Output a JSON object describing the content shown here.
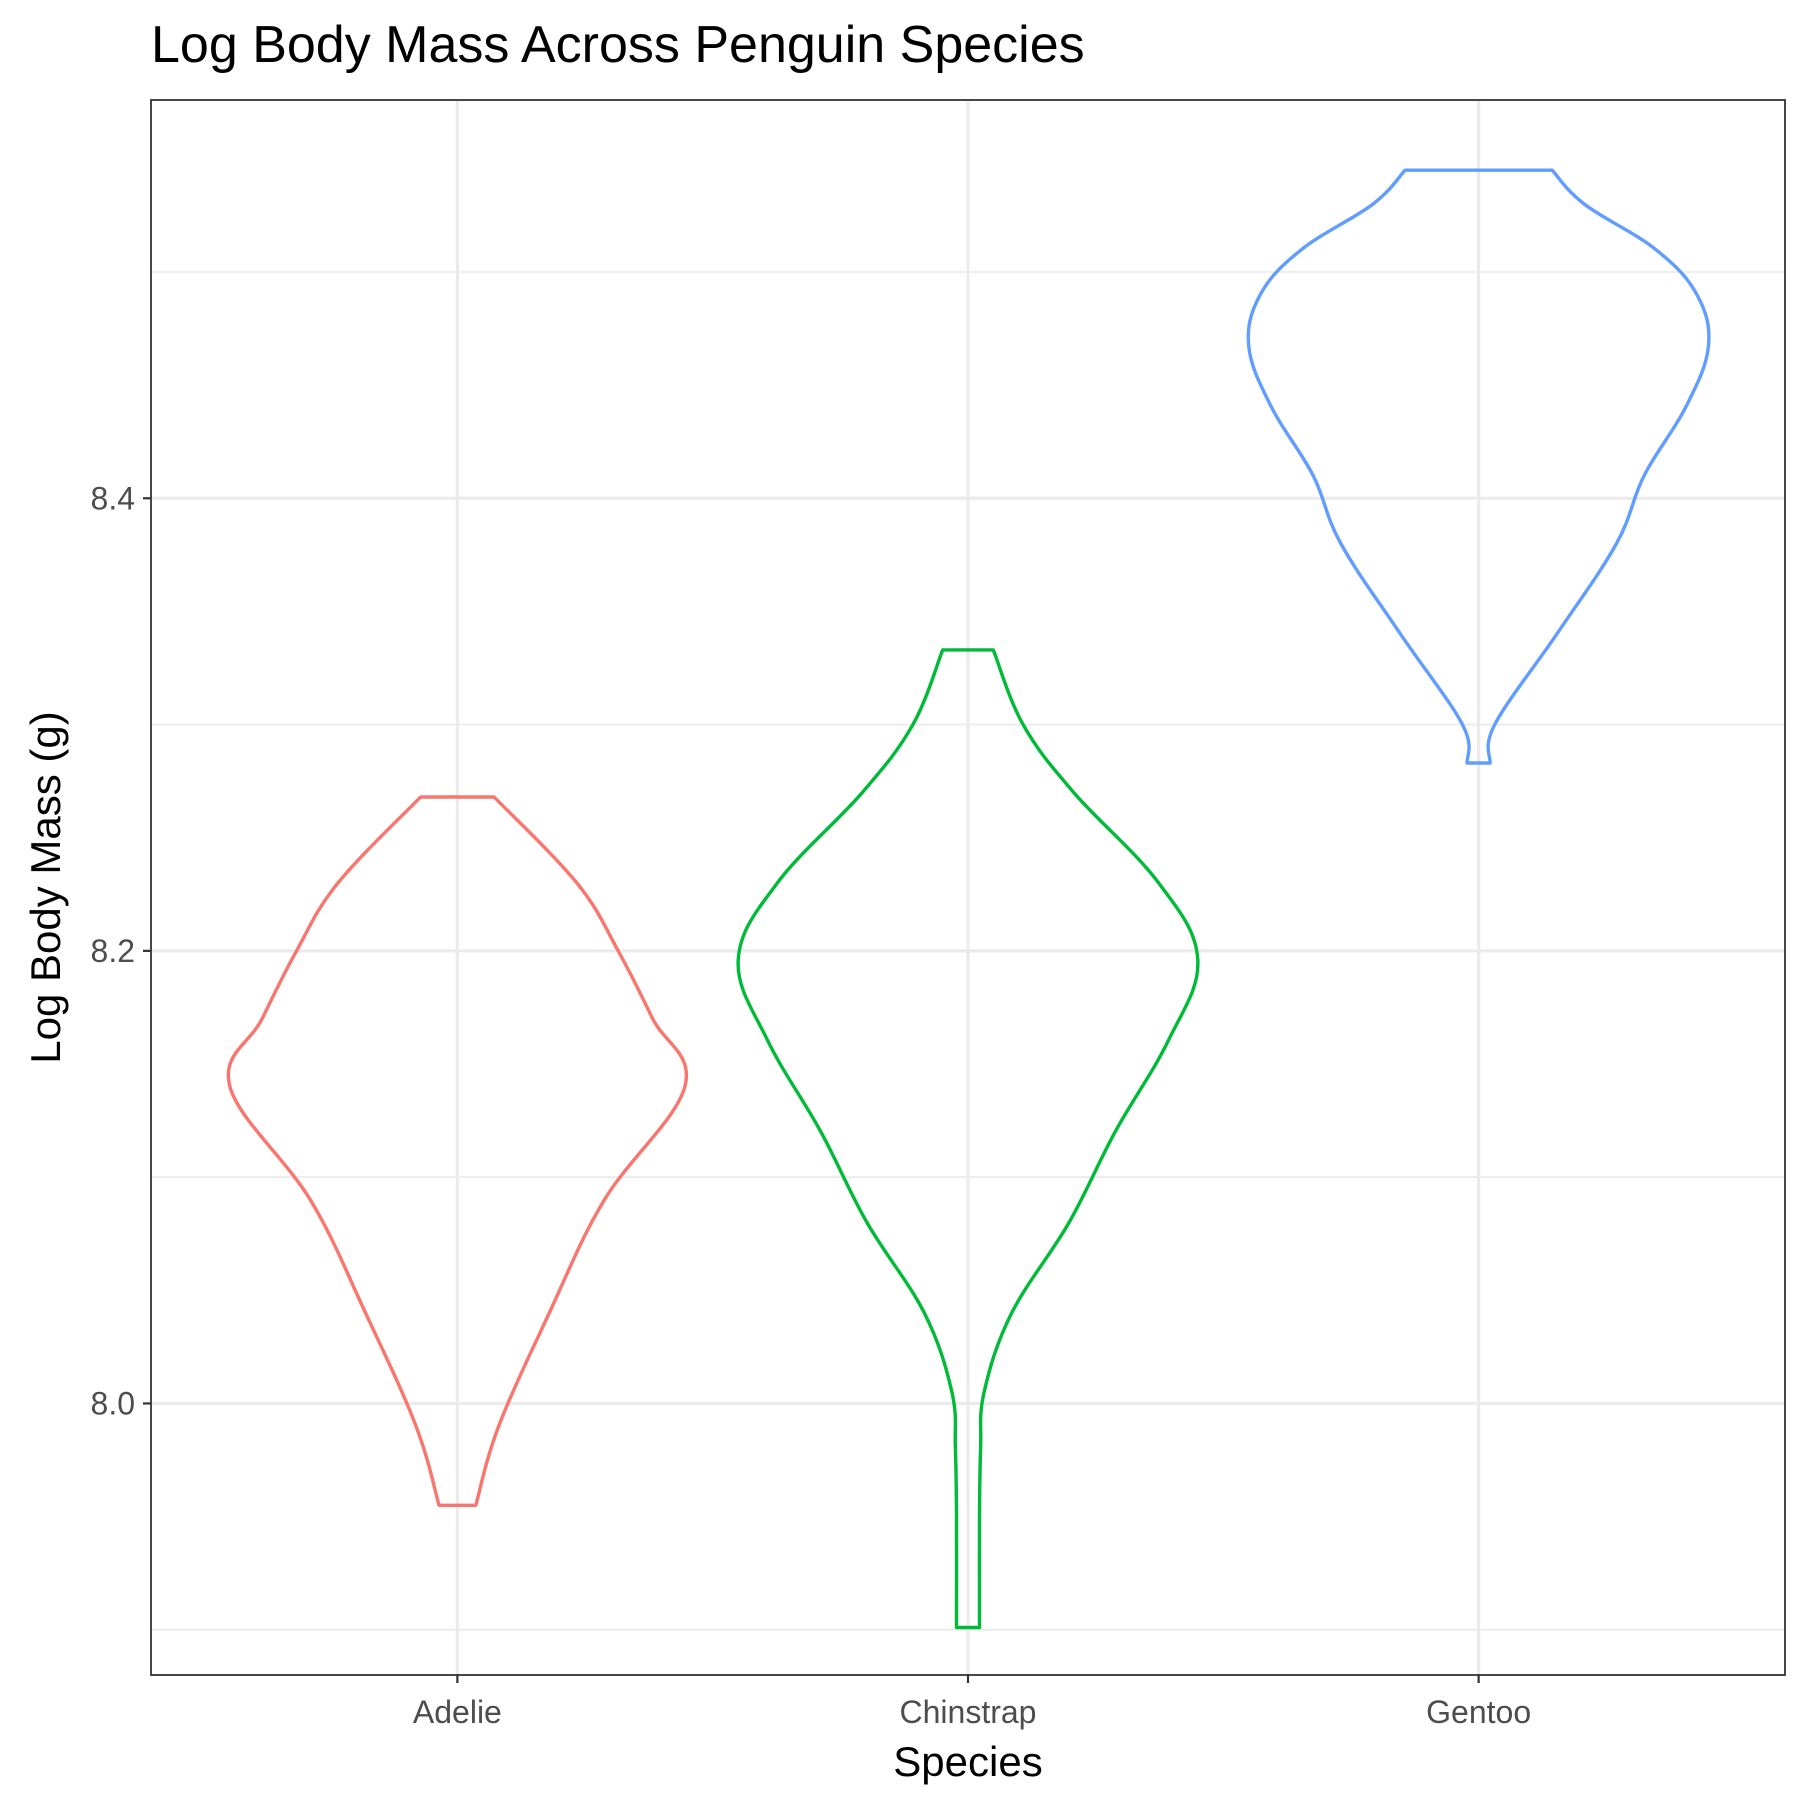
{
  "chart_data": {
    "type": "violin",
    "title": "Log Body Mass Across Penguin Species",
    "xlabel": "Species",
    "ylabel": "Log Body Mass (g)",
    "categories": [
      "Adelie",
      "Chinstrap",
      "Gentoo"
    ],
    "ylim": [
      7.88,
      8.576
    ],
    "yticks": [
      8.0,
      8.2,
      8.4
    ],
    "yticks_labels": [
      "8.0",
      "8.2",
      "8.4"
    ],
    "y_minor_gridlines": [
      7.9,
      8.1,
      8.3,
      8.5
    ],
    "grid": true,
    "legend": "none",
    "series": [
      {
        "category": "Adelie",
        "color": "#F8766D",
        "min": 7.955,
        "max": 8.268,
        "density_profile": [
          [
            7.955,
            0.08
          ],
          [
            7.99,
            0.18
          ],
          [
            8.04,
            0.4
          ],
          [
            8.09,
            0.64
          ],
          [
            8.14,
            0.99
          ],
          [
            8.17,
            0.85
          ],
          [
            8.2,
            0.7
          ],
          [
            8.23,
            0.52
          ],
          [
            8.268,
            0.16
          ]
        ]
      },
      {
        "category": "Chinstrap",
        "color": "#00BA38",
        "min": 7.901,
        "max": 8.333,
        "density_profile": [
          [
            7.901,
            0.05
          ],
          [
            7.95,
            0.05
          ],
          [
            7.98,
            0.055
          ],
          [
            8.005,
            0.07
          ],
          [
            8.04,
            0.19
          ],
          [
            8.08,
            0.44
          ],
          [
            8.12,
            0.64
          ],
          [
            8.16,
            0.87
          ],
          [
            8.196,
            1.0
          ],
          [
            8.23,
            0.83
          ],
          [
            8.27,
            0.46
          ],
          [
            8.3,
            0.24
          ],
          [
            8.333,
            0.11
          ]
        ]
      },
      {
        "category": "Gentoo",
        "color": "#619CFF",
        "min": 8.283,
        "max": 8.545,
        "density_profile": [
          [
            8.283,
            0.05
          ],
          [
            8.3,
            0.07
          ],
          [
            8.34,
            0.34
          ],
          [
            8.38,
            0.6
          ],
          [
            8.41,
            0.72
          ],
          [
            8.44,
            0.9
          ],
          [
            8.467,
            1.0
          ],
          [
            8.49,
            0.95
          ],
          [
            8.51,
            0.77
          ],
          [
            8.53,
            0.46
          ],
          [
            8.545,
            0.32
          ]
        ]
      }
    ]
  }
}
